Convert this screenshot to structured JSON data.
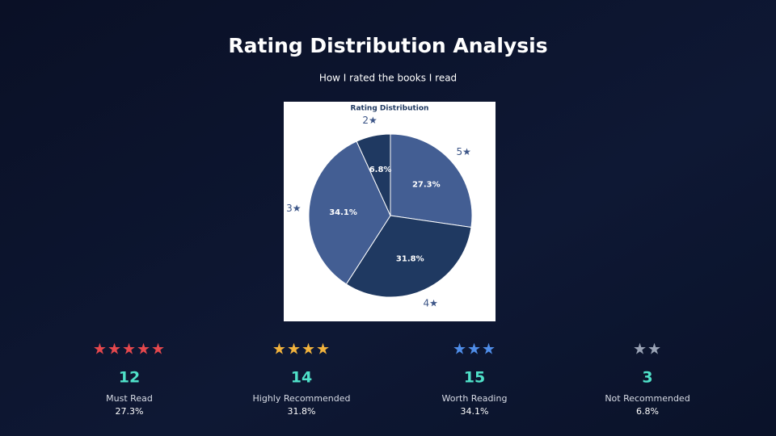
{
  "title": "Rating Distribution Analysis",
  "subtitle": "How I rated the books I read",
  "chart_data": {
    "type": "pie",
    "title": "Rating Distribution",
    "categories": [
      "5★",
      "4★",
      "3★",
      "2★"
    ],
    "values": [
      27.3,
      31.8,
      34.1,
      6.8
    ],
    "value_labels": [
      "27.3%",
      "31.8%",
      "34.1%",
      "6.8%"
    ],
    "colors": [
      "#435e93",
      "#1f3961",
      "#435e93",
      "#1f3961"
    ]
  },
  "cards": [
    {
      "stars": "★★★★★",
      "count": 12,
      "label": "Must Read",
      "percent": "27.3%",
      "color": "#e5484d"
    },
    {
      "stars": "★★★★",
      "count": 14,
      "label": "Highly Recommended",
      "percent": "31.8%",
      "color": "#f2b33d"
    },
    {
      "stars": "★★★",
      "count": 15,
      "label": "Worth Reading",
      "percent": "34.1%",
      "color": "#4f8de8"
    },
    {
      "stars": "★★",
      "count": 3,
      "label": "Not Recommended",
      "percent": "6.8%",
      "color": "#9aa3b5"
    }
  ]
}
